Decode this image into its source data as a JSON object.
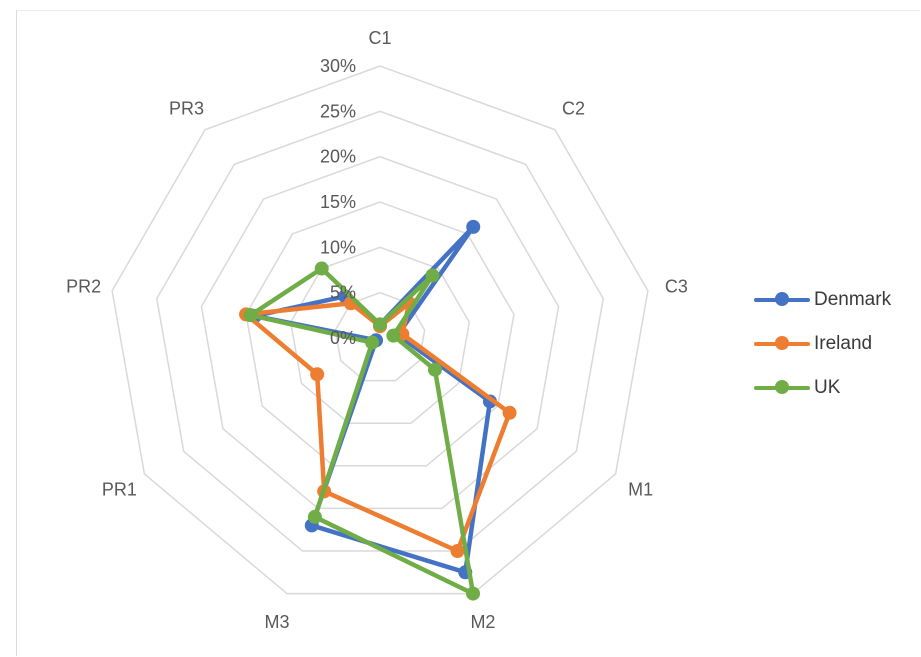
{
  "chart_data": {
    "type": "radar",
    "categories": [
      "C1",
      "C2",
      "C3",
      "M1",
      "M2",
      "M3",
      "PR1",
      "PR2",
      "PR3"
    ],
    "tick_labels": [
      "0%",
      "5%",
      "10%",
      "15%",
      "20%",
      "25%",
      "30%"
    ],
    "ylim": [
      0,
      0.3
    ],
    "grid": true,
    "legend_position": "right",
    "series": [
      {
        "name": "Denmark",
        "color": "#4472c4",
        "values": [
          0.015,
          0.16,
          0.02,
          0.14,
          0.275,
          0.22,
          0.005,
          0.14,
          0.06
        ]
      },
      {
        "name": "Ireland",
        "color": "#ed7d31",
        "values": [
          0.013,
          0.05,
          0.025,
          0.165,
          0.25,
          0.18,
          0.08,
          0.15,
          0.05
        ]
      },
      {
        "name": "UK",
        "color": "#70ad47",
        "values": [
          0.015,
          0.09,
          0.015,
          0.07,
          0.3,
          0.21,
          0.01,
          0.145,
          0.1
        ]
      }
    ]
  }
}
